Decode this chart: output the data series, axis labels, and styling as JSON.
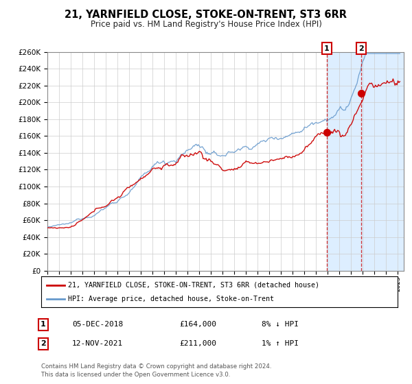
{
  "title": "21, YARNFIELD CLOSE, STOKE-ON-TRENT, ST3 6RR",
  "subtitle": "Price paid vs. HM Land Registry's House Price Index (HPI)",
  "ylim": [
    0,
    260000
  ],
  "yticks": [
    0,
    20000,
    40000,
    60000,
    80000,
    100000,
    120000,
    140000,
    160000,
    180000,
    200000,
    220000,
    240000,
    260000
  ],
  "xlim_start": 1995.0,
  "xlim_end": 2025.5,
  "legend_label_red": "21, YARNFIELD CLOSE, STOKE-ON-TRENT, ST3 6RR (detached house)",
  "legend_label_blue": "HPI: Average price, detached house, Stoke-on-Trent",
  "point1_date": "05-DEC-2018",
  "point1_price": "£164,000",
  "point1_hpi": "8% ↓ HPI",
  "point1_x": 2018.92,
  "point1_y": 164000,
  "point2_date": "12-NOV-2021",
  "point2_price": "£211,000",
  "point2_hpi": "1% ↑ HPI",
  "point2_x": 2021.87,
  "point2_y": 211000,
  "footer1": "Contains HM Land Registry data © Crown copyright and database right 2024.",
  "footer2": "This data is licensed under the Open Government Licence v3.0.",
  "red_color": "#cc0000",
  "blue_color": "#6699cc",
  "shade_color": "#ddeeff",
  "background_color": "#ffffff",
  "grid_color": "#cccccc"
}
